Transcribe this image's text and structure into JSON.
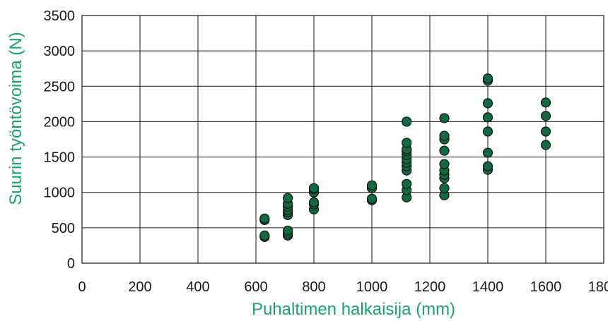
{
  "chart_data": {
    "type": "scatter",
    "title": "",
    "xlabel": "Puhaltimen halkaisija (mm)",
    "ylabel": "Suurin työntövoima (N)",
    "xlim": [
      0,
      1800
    ],
    "ylim": [
      0,
      3500
    ],
    "xticks": [
      0,
      200,
      400,
      600,
      800,
      1000,
      1200,
      1400,
      1600,
      1800
    ],
    "yticks": [
      0,
      500,
      1000,
      1500,
      2000,
      2500,
      3000,
      3500
    ],
    "xtick_labels": [
      "0",
      "200",
      "400",
      "600",
      "800",
      "1000",
      "1200",
      "1400",
      "1600",
      "1800"
    ],
    "ytick_labels": [
      "0",
      "500",
      "1000",
      "1500",
      "2000",
      "2500",
      "3000",
      "3500"
    ],
    "grid": true,
    "legend": "none",
    "colors": {
      "point": "#0f6b3f",
      "axis_title": "#1aa36b",
      "grid": "#1a1a1a"
    },
    "series": [
      {
        "points": [
          [
            630,
            370
          ],
          [
            630,
            390
          ],
          [
            630,
            610
          ],
          [
            630,
            630
          ],
          [
            710,
            390
          ],
          [
            710,
            420
          ],
          [
            710,
            460
          ],
          [
            710,
            680
          ],
          [
            710,
            720
          ],
          [
            710,
            750
          ],
          [
            710,
            800
          ],
          [
            710,
            840
          ],
          [
            710,
            920
          ],
          [
            800,
            760
          ],
          [
            800,
            830
          ],
          [
            800,
            860
          ],
          [
            800,
            1000
          ],
          [
            800,
            1050
          ],
          [
            800,
            1060
          ],
          [
            1000,
            890
          ],
          [
            1000,
            910
          ],
          [
            1000,
            1060
          ],
          [
            1000,
            1100
          ],
          [
            1120,
            930
          ],
          [
            1120,
            1030
          ],
          [
            1120,
            1120
          ],
          [
            1120,
            1310
          ],
          [
            1120,
            1370
          ],
          [
            1120,
            1420
          ],
          [
            1120,
            1470
          ],
          [
            1120,
            1530
          ],
          [
            1120,
            1580
          ],
          [
            1120,
            1610
          ],
          [
            1120,
            1700
          ],
          [
            1120,
            2000
          ],
          [
            1250,
            960
          ],
          [
            1250,
            1060
          ],
          [
            1250,
            1200
          ],
          [
            1250,
            1250
          ],
          [
            1250,
            1310
          ],
          [
            1250,
            1400
          ],
          [
            1250,
            1590
          ],
          [
            1250,
            1750
          ],
          [
            1250,
            1800
          ],
          [
            1250,
            2050
          ],
          [
            1400,
            1320
          ],
          [
            1400,
            1370
          ],
          [
            1400,
            1560
          ],
          [
            1400,
            1860
          ],
          [
            1400,
            2060
          ],
          [
            1400,
            2260
          ],
          [
            1400,
            2580
          ],
          [
            1400,
            2610
          ],
          [
            1600,
            1670
          ],
          [
            1600,
            1860
          ],
          [
            1600,
            2080
          ],
          [
            1600,
            2270
          ]
        ]
      }
    ]
  }
}
